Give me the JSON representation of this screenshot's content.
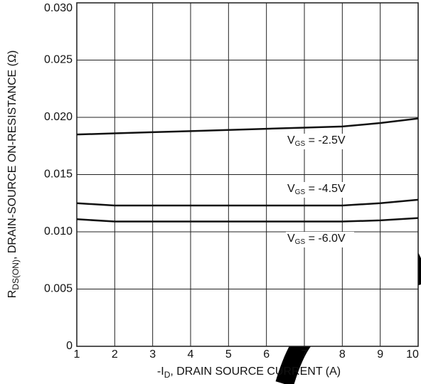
{
  "chart_data": {
    "type": "line",
    "xlabel": {
      "main": "-I",
      "sub": "D",
      "rest": ", DRAIN SOURCE CURRENT (A)"
    },
    "ylabel": {
      "main": "R",
      "sub": "DS(ON)",
      "rest": ", DRAIN-SOURCE ON-RESISTANCE (Ω)"
    },
    "x": [
      1,
      2,
      3,
      4,
      5,
      6,
      7,
      8,
      9,
      10
    ],
    "series": [
      {
        "name": "VGS = -2.5V",
        "color": "#111111",
        "values": [
          0.0185,
          0.0186,
          0.0187,
          0.0188,
          0.0189,
          0.019,
          0.0191,
          0.0192,
          0.0195,
          0.0199
        ]
      },
      {
        "name": "VGS = -4.5V",
        "color": "#111111",
        "values": [
          0.0125,
          0.0123,
          0.0123,
          0.0123,
          0.0123,
          0.0123,
          0.0123,
          0.0123,
          0.0125,
          0.0128
        ]
      },
      {
        "name": "VGS = -6.0V",
        "color": "#111111",
        "values": [
          0.0111,
          0.0109,
          0.0109,
          0.0109,
          0.0109,
          0.0109,
          0.0109,
          0.0109,
          0.011,
          0.0112
        ]
      }
    ],
    "xlim": [
      1,
      10
    ],
    "xticks": [
      1,
      2,
      3,
      4,
      5,
      6,
      7,
      8,
      9,
      10
    ],
    "ylim": [
      0,
      0.03
    ],
    "yticks": [
      0,
      0.005,
      {
        "value": 0.01,
        "label": "0.010"
      },
      0.015,
      {
        "value": 0.02,
        "label": "0.020"
      },
      0.025,
      {
        "value": 0.03,
        "label": "0.030"
      }
    ],
    "grid": true
  }
}
